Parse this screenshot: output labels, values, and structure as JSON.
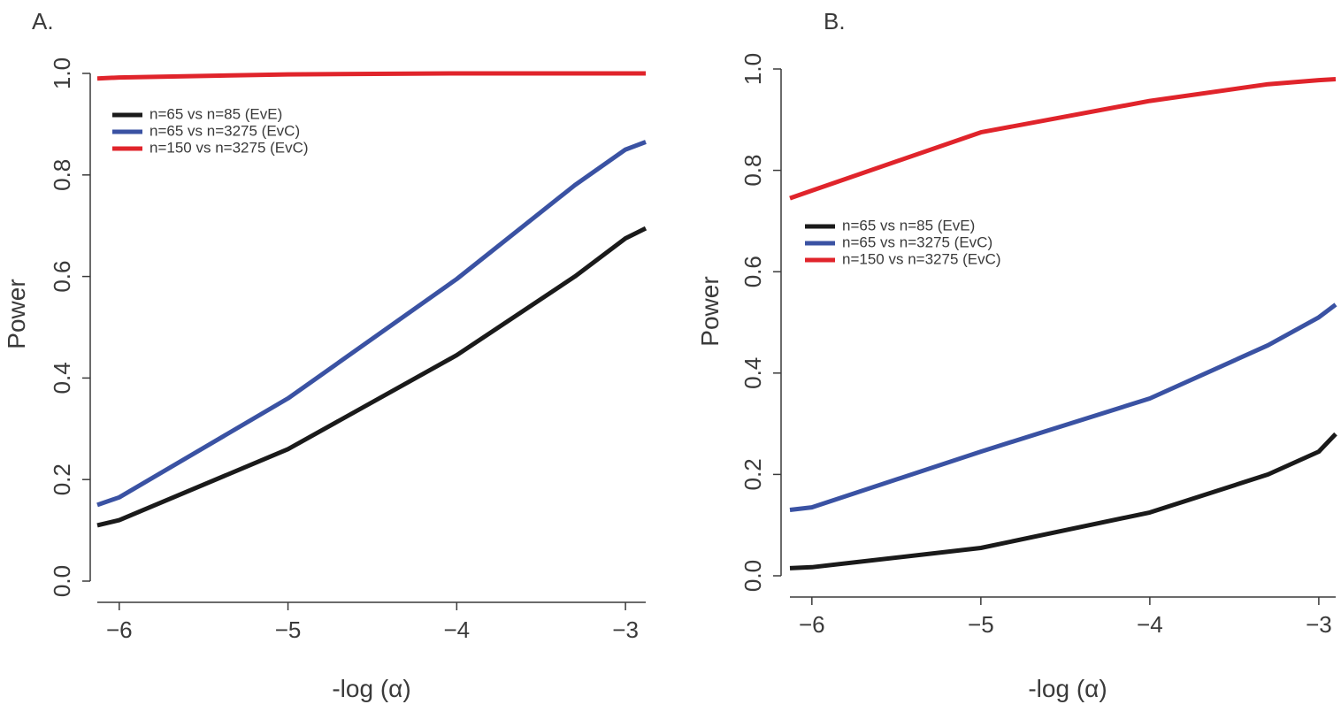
{
  "chart_data": [
    {
      "type": "line",
      "panel_label": "A.",
      "xlabel": "-log (α)",
      "ylabel": "Power",
      "xlim": [
        -6.13,
        -2.88
      ],
      "ylim": [
        0.0,
        1.0
      ],
      "xticks": [
        -6,
        -5,
        -4,
        -3
      ],
      "xtick_labels": [
        "−6",
        "−5",
        "−4",
        "−3"
      ],
      "yticks": [
        0.0,
        0.2,
        0.4,
        0.6,
        0.8,
        1.0
      ],
      "ytick_labels": [
        "0.0",
        "0.2",
        "0.4",
        "0.6",
        "0.8",
        "1.0"
      ],
      "grid": false,
      "legend_position": "top-left",
      "series": [
        {
          "name": "n=65 vs n=85 (EvE)",
          "color": "#1a1a1a",
          "x": [
            -6.13,
            -6,
            -5,
            -4,
            -3.3,
            -3,
            -2.88
          ],
          "y": [
            0.11,
            0.12,
            0.26,
            0.445,
            0.6,
            0.675,
            0.695
          ]
        },
        {
          "name": "n=65 vs n=3275 (EvC)",
          "color": "#3a52a3",
          "x": [
            -6.13,
            -6,
            -5,
            -4,
            -3.3,
            -3,
            -2.88
          ],
          "y": [
            0.15,
            0.165,
            0.36,
            0.595,
            0.78,
            0.85,
            0.865
          ]
        },
        {
          "name": "n=150 vs n=3275 (EvC)",
          "color": "#e0242b",
          "x": [
            -6.13,
            -6,
            -5,
            -4,
            -3,
            -2.88
          ],
          "y": [
            0.99,
            0.992,
            0.998,
            1.0,
            1.0,
            1.0
          ]
        }
      ]
    },
    {
      "type": "line",
      "panel_label": "B.",
      "xlabel": "-log (α)",
      "ylabel": "Power",
      "xlim": [
        -6.13,
        -2.9
      ],
      "ylim": [
        0.0,
        1.0
      ],
      "xticks": [
        -6,
        -5,
        -4,
        -3
      ],
      "xtick_labels": [
        "−6",
        "−5",
        "−4",
        "−3"
      ],
      "yticks": [
        0.0,
        0.2,
        0.4,
        0.6,
        0.8,
        1.0
      ],
      "ytick_labels": [
        "0.0",
        "0.2",
        "0.4",
        "0.6",
        "0.8",
        "1.0"
      ],
      "grid": false,
      "legend_position": "middle-left",
      "series": [
        {
          "name": "n=65 vs n=85 (EvE)",
          "color": "#1a1a1a",
          "x": [
            -6.13,
            -6,
            -5,
            -4,
            -3.3,
            -3,
            -2.9
          ],
          "y": [
            0.015,
            0.017,
            0.055,
            0.125,
            0.2,
            0.245,
            0.28
          ]
        },
        {
          "name": "n=65 vs n=3275 (EvC)",
          "color": "#3a52a3",
          "x": [
            -6.13,
            -6,
            -5,
            -4,
            -3.3,
            -3,
            -2.9
          ],
          "y": [
            0.13,
            0.135,
            0.245,
            0.35,
            0.455,
            0.51,
            0.535
          ]
        },
        {
          "name": "n=150 vs n=3275 (EvC)",
          "color": "#e0242b",
          "x": [
            -6.13,
            -6,
            -5,
            -4,
            -3.3,
            -3,
            -2.9
          ],
          "y": [
            0.745,
            0.76,
            0.875,
            0.937,
            0.97,
            0.978,
            0.98
          ]
        }
      ]
    }
  ]
}
